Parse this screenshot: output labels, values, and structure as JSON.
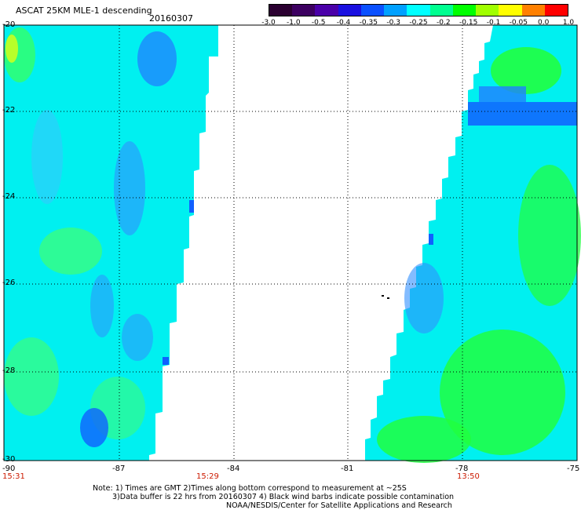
{
  "title": "ASCAT 25KM MLE-1 descending",
  "date": "20160307",
  "colorbar": {
    "labels": [
      "-3.0",
      "-1.0",
      "-0.5",
      "-0.4",
      "-0.35",
      "-0.3",
      "-0.25",
      "-0.2",
      "-0.15",
      "-0.1",
      "-0.05",
      "0.0",
      "1.0"
    ],
    "colors": [
      "#2a0030",
      "#3c0060",
      "#4a00a8",
      "#1a10e0",
      "#0a50ff",
      "#00a0ff",
      "#00ffff",
      "#00ff90",
      "#00ff00",
      "#a0ff00",
      "#ffff00",
      "#ff8000",
      "#ff0000"
    ]
  },
  "axes": {
    "lat_labels": [
      "-20",
      "-22",
      "-24",
      "-26",
      "-28",
      "-30"
    ],
    "lon_labels": [
      "-90",
      "-87",
      "-84",
      "-81",
      "-78",
      "-75"
    ]
  },
  "times": [
    "15:31",
    "15:29",
    "13:50"
  ],
  "notes": {
    "line1": "Note: 1) Times are GMT 2)Times along bottom correspond to measurement at ~25S",
    "line2": "3)Data buffer is 22 hrs from 20160307 4) Black wind barbs indicate possible contamination",
    "line3": "NOAA/NESDIS/Center for Satellite Applications and Research"
  }
}
